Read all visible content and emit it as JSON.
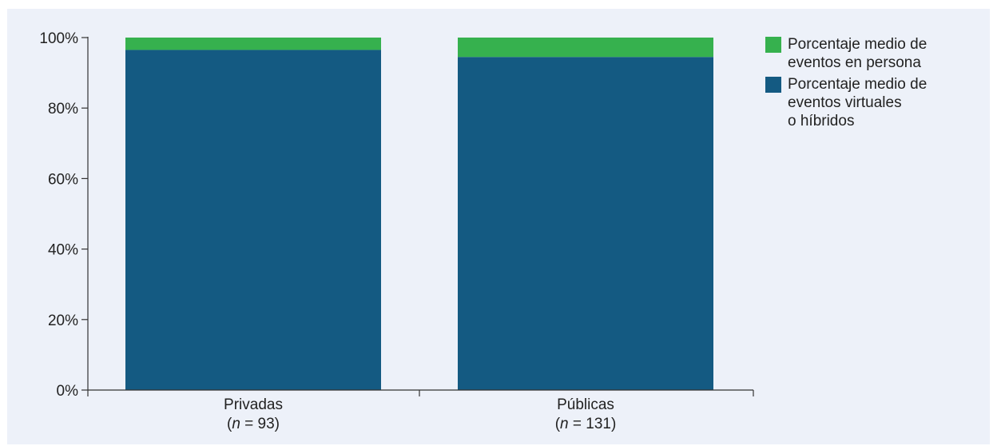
{
  "chart_data": {
    "type": "bar",
    "stacked": true,
    "categories": [
      "Privadas",
      "Públicas"
    ],
    "category_n": [
      "93",
      "131"
    ],
    "n_prefix": "n",
    "series": [
      {
        "name": "Porcentaje medio de eventos virtuales o híbridos",
        "legend_text": "Porcentaje medio de\neventos virtuales\no híbridos",
        "color": "#145a82",
        "values": [
          96.5,
          94.5
        ]
      },
      {
        "name": "Porcentaje medio de eventos en persona",
        "legend_text": "Porcentaje medio de\neventos en persona",
        "color": "#36b14e",
        "values": [
          3.5,
          5.5
        ]
      }
    ],
    "legend_order": [
      1,
      0
    ],
    "ylim": [
      0,
      100
    ],
    "yticks": [
      "0%",
      "20%",
      "40%",
      "60%",
      "80%",
      "100%"
    ],
    "ytick_values": [
      0,
      20,
      40,
      60,
      80,
      100
    ],
    "grid": false,
    "legend_position": "top-right",
    "title": "",
    "xlabel": "",
    "ylabel": ""
  }
}
